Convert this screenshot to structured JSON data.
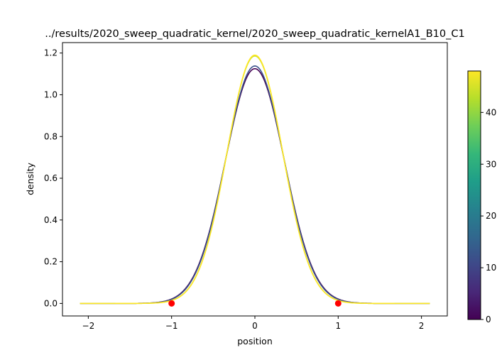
{
  "chart_data": {
    "type": "line",
    "title": "../results/2020_sweep_quadratic_kernel/2020_sweep_quadratic_kernelA1_B10_C1",
    "xlabel": "position",
    "ylabel": "density",
    "xlim": [
      -2.31,
      2.31
    ],
    "ylim": [
      -0.06,
      1.25
    ],
    "xticks": [
      -2,
      -1,
      0,
      1,
      2
    ],
    "yticks": [
      0.0,
      0.2,
      0.4,
      0.6,
      0.8,
      1.0,
      1.2
    ],
    "x_range": [
      -2.1,
      2.1
    ],
    "series": [
      {
        "peak": 1.125,
        "sigma": 0.355,
        "color": "#440154"
      },
      {
        "peak": 1.138,
        "sigma": 0.351,
        "color": "#3b528b"
      },
      {
        "peak": 1.186,
        "sigma": 0.3365,
        "color": "#c8e020"
      },
      {
        "peak": 1.19,
        "sigma": 0.3355,
        "color": "#fde725"
      }
    ],
    "markers": {
      "x": [
        -1,
        1
      ],
      "y": [
        0,
        0
      ],
      "color": "#ff0000"
    },
    "colorbar": {
      "range": [
        0,
        48
      ],
      "ticks": [
        0,
        10,
        20,
        30,
        40
      ],
      "colormap": [
        "#440154",
        "#482878",
        "#3e4989",
        "#31688e",
        "#26828e",
        "#1f9e89",
        "#35b779",
        "#6ece58",
        "#b5de2b",
        "#fde725"
      ]
    }
  }
}
